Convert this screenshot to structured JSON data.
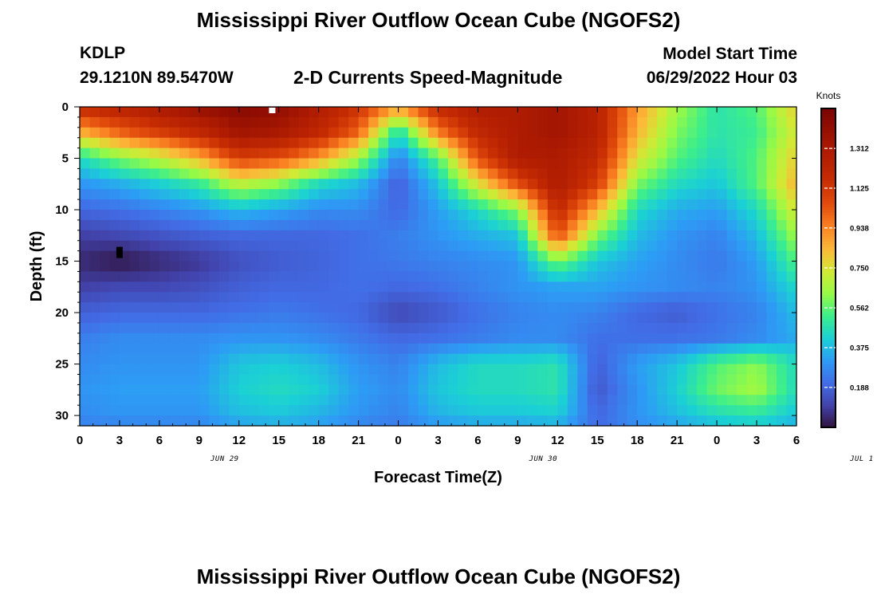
{
  "header": {
    "title": "Mississippi River Outflow Ocean Cube (NGOFS2)",
    "station": "KDLP",
    "coords": "29.1210N  89.5470W",
    "subtitle": "2-D Currents Speed-Magnitude",
    "model_start_label": "Model Start Time",
    "model_start_value": "06/29/2022 Hour 03"
  },
  "footer": {
    "title": "Mississippi River Outflow Ocean Cube (NGOFS2)"
  },
  "chart_data": {
    "type": "heatmap",
    "title": "2-D Currents Speed-Magnitude",
    "xlabel": "Forecast Time(Z)",
    "ylabel": "Depth (ft)",
    "x_hours_range": [
      0,
      54
    ],
    "x_tick_labels": [
      "0",
      "3",
      "6",
      "9",
      "12",
      "15",
      "18",
      "21",
      "0",
      "3",
      "6",
      "9",
      "12",
      "15",
      "18",
      "21",
      "0",
      "3",
      "6"
    ],
    "date_labels": [
      {
        "label": "JUN 29",
        "hour": 12
      },
      {
        "label": "JUN 30",
        "hour": 36
      },
      {
        "label": "JUL 1",
        "hour": 60
      }
    ],
    "y_range": [
      0,
      31
    ],
    "y_ticks": [
      0,
      5,
      10,
      15,
      20,
      25,
      30
    ],
    "y_inverted": true,
    "colorbar": {
      "title": "Knots",
      "min": 0,
      "max": 1.5,
      "ticks": [
        0.188,
        0.375,
        0.562,
        0.75,
        0.938,
        1.125,
        1.312
      ],
      "tick_labels": [
        "0.188",
        "0.375",
        "0.562",
        "0.750",
        "0.938",
        "1.125",
        "1.312"
      ]
    },
    "speed_knots_hours": [
      0,
      3,
      6,
      9,
      12,
      15,
      18,
      21,
      24,
      27,
      30,
      33,
      36,
      39,
      42,
      45,
      48,
      51,
      54
    ],
    "speed_knots_depths": [
      0,
      2.5,
      5,
      7.5,
      10,
      12.5,
      15,
      17.5,
      20,
      22.5,
      25,
      27.5,
      30,
      31
    ],
    "speed_knots": [
      [
        1.2,
        1.25,
        1.32,
        1.4,
        1.45,
        1.42,
        1.3,
        1.15,
        0.9,
        1.2,
        1.3,
        1.3,
        1.35,
        1.25,
        0.9,
        0.65,
        0.48,
        0.55,
        0.8
      ],
      [
        0.85,
        1.0,
        1.1,
        1.2,
        1.35,
        1.32,
        1.2,
        1.0,
        0.45,
        0.95,
        1.2,
        1.3,
        1.35,
        1.25,
        0.85,
        0.6,
        0.48,
        0.52,
        0.75
      ],
      [
        0.45,
        0.6,
        0.7,
        0.85,
        1.1,
        1.05,
        0.9,
        0.65,
        0.25,
        0.55,
        1.05,
        1.3,
        1.3,
        1.2,
        0.75,
        0.55,
        0.45,
        0.55,
        0.8
      ],
      [
        0.3,
        0.35,
        0.42,
        0.5,
        0.7,
        0.62,
        0.45,
        0.38,
        0.18,
        0.4,
        0.75,
        1.05,
        1.3,
        1.1,
        0.6,
        0.45,
        0.4,
        0.55,
        0.85
      ],
      [
        0.2,
        0.22,
        0.26,
        0.3,
        0.38,
        0.33,
        0.28,
        0.28,
        0.2,
        0.32,
        0.45,
        0.62,
        1.2,
        0.85,
        0.45,
        0.35,
        0.32,
        0.45,
        0.75
      ],
      [
        0.1,
        0.12,
        0.15,
        0.18,
        0.2,
        0.2,
        0.2,
        0.22,
        0.25,
        0.3,
        0.35,
        0.4,
        1.05,
        0.6,
        0.38,
        0.3,
        0.26,
        0.38,
        0.65
      ],
      [
        0.05,
        0.01,
        0.05,
        0.08,
        0.14,
        0.17,
        0.19,
        0.22,
        0.24,
        0.26,
        0.28,
        0.3,
        0.6,
        0.4,
        0.33,
        0.28,
        0.24,
        0.32,
        0.55
      ],
      [
        0.1,
        0.12,
        0.12,
        0.14,
        0.18,
        0.2,
        0.2,
        0.22,
        0.2,
        0.22,
        0.26,
        0.3,
        0.33,
        0.33,
        0.3,
        0.28,
        0.26,
        0.3,
        0.45
      ],
      [
        0.18,
        0.2,
        0.2,
        0.2,
        0.22,
        0.24,
        0.22,
        0.2,
        0.12,
        0.16,
        0.22,
        0.26,
        0.28,
        0.26,
        0.2,
        0.17,
        0.22,
        0.26,
        0.38
      ],
      [
        0.25,
        0.28,
        0.28,
        0.28,
        0.3,
        0.3,
        0.28,
        0.24,
        0.2,
        0.22,
        0.25,
        0.28,
        0.28,
        0.22,
        0.22,
        0.22,
        0.24,
        0.28,
        0.35
      ],
      [
        0.28,
        0.3,
        0.3,
        0.3,
        0.4,
        0.42,
        0.38,
        0.3,
        0.26,
        0.38,
        0.45,
        0.45,
        0.48,
        0.18,
        0.32,
        0.4,
        0.55,
        0.62,
        0.45
      ],
      [
        0.3,
        0.32,
        0.32,
        0.32,
        0.42,
        0.45,
        0.42,
        0.32,
        0.28,
        0.4,
        0.45,
        0.45,
        0.48,
        0.16,
        0.3,
        0.42,
        0.58,
        0.65,
        0.45
      ],
      [
        0.28,
        0.3,
        0.3,
        0.3,
        0.38,
        0.4,
        0.36,
        0.3,
        0.26,
        0.36,
        0.4,
        0.4,
        0.42,
        0.2,
        0.3,
        0.38,
        0.45,
        0.48,
        0.4
      ],
      [
        0.25,
        0.26,
        0.26,
        0.26,
        0.32,
        0.34,
        0.32,
        0.26,
        0.24,
        0.3,
        0.32,
        0.32,
        0.34,
        0.2,
        0.28,
        0.32,
        0.38,
        0.4,
        0.35
      ]
    ],
    "markers": [
      {
        "hour": 14.5,
        "depth": 0.3,
        "color": "#ffffff"
      },
      {
        "hour": 3,
        "depth": 14,
        "color": "#000000"
      }
    ]
  }
}
